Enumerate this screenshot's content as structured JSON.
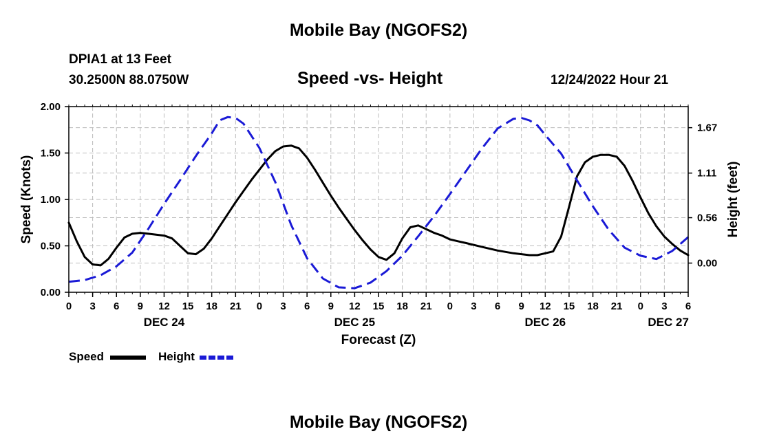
{
  "header": {
    "title": "Mobile Bay (NGOFS2)",
    "station": "DPIA1 at 13 Feet",
    "coordinates": "30.2500N  88.0750W",
    "subtitle": "Speed -vs- Height",
    "timestamp": "12/24/2022 Hour 21"
  },
  "footer": {
    "title": "Mobile Bay (NGOFS2)"
  },
  "legend": {
    "speed_label": "Speed",
    "height_label": "Height"
  },
  "chart_data": {
    "type": "line",
    "title": "Speed -vs- Height",
    "xlabel": "Forecast (Z)",
    "ylabel": "Speed (Knots)",
    "y2label": "Height (feet)",
    "xlim": [
      0,
      78
    ],
    "ylim": [
      0,
      2.0
    ],
    "y2lim": [
      -0.36,
      1.93
    ],
    "grid": true,
    "legend_position": "bottom-left",
    "x_ticks": [
      0,
      3,
      6,
      9,
      12,
      15,
      18,
      21,
      24,
      27,
      30,
      33,
      36,
      39,
      42,
      45,
      48,
      51,
      54,
      57,
      60,
      63,
      66,
      69,
      72,
      75,
      78
    ],
    "x_tick_labels": [
      "0",
      "3",
      "6",
      "9",
      "12",
      "15",
      "18",
      "21",
      "0",
      "3",
      "6",
      "9",
      "12",
      "15",
      "18",
      "21",
      "0",
      "3",
      "6",
      "9",
      "12",
      "15",
      "18",
      "21",
      "0",
      "3",
      "6"
    ],
    "date_labels": [
      {
        "hour": 12,
        "label": "DEC 24"
      },
      {
        "hour": 36,
        "label": "DEC 25"
      },
      {
        "hour": 60,
        "label": "DEC 26"
      },
      {
        "hour": 75.5,
        "label": "DEC 27"
      }
    ],
    "y_ticks": [
      0.0,
      0.5,
      1.0,
      1.5,
      2.0
    ],
    "y_tick_labels": [
      "0.00",
      "0.50",
      "1.00",
      "1.50",
      "2.00"
    ],
    "y2_ticks": [
      0.0,
      0.56,
      1.11,
      1.67
    ],
    "y2_tick_labels": [
      "0.00",
      "0.56",
      "1.11",
      "1.67"
    ],
    "series": [
      {
        "name": "Speed",
        "axis": "left",
        "color": "#000000",
        "dash": "solid",
        "x": [
          0,
          1,
          2,
          3,
          4,
          5,
          6,
          7,
          8,
          9,
          10,
          11,
          12,
          13,
          14,
          15,
          16,
          17,
          18,
          19,
          20,
          21,
          22,
          23,
          24,
          25,
          26,
          27,
          28,
          29,
          30,
          31,
          32,
          33,
          34,
          35,
          36,
          37,
          38,
          39,
          40,
          41,
          42,
          43,
          44,
          45,
          45.5,
          46,
          47,
          47.5,
          48,
          49,
          50,
          52,
          54,
          56,
          58,
          59,
          60,
          61,
          62,
          63,
          64,
          65,
          66,
          67,
          68,
          69,
          70,
          71,
          72,
          73,
          74,
          75,
          76,
          77,
          78
        ],
        "values": [
          0.75,
          0.55,
          0.38,
          0.3,
          0.29,
          0.36,
          0.48,
          0.59,
          0.63,
          0.64,
          0.63,
          0.62,
          0.61,
          0.58,
          0.5,
          0.42,
          0.41,
          0.47,
          0.58,
          0.71,
          0.84,
          0.97,
          1.09,
          1.21,
          1.32,
          1.43,
          1.52,
          1.57,
          1.58,
          1.55,
          1.45,
          1.32,
          1.18,
          1.04,
          0.91,
          0.79,
          0.67,
          0.56,
          0.46,
          0.38,
          0.35,
          0.42,
          0.58,
          0.7,
          0.72,
          0.68,
          0.66,
          0.64,
          0.61,
          0.59,
          0.57,
          0.55,
          0.53,
          0.49,
          0.45,
          0.42,
          0.4,
          0.4,
          0.42,
          0.44,
          0.6,
          0.92,
          1.25,
          1.4,
          1.46,
          1.48,
          1.48,
          1.46,
          1.36,
          1.2,
          1.02,
          0.85,
          0.71,
          0.6,
          0.52,
          0.45,
          0.4
        ]
      },
      {
        "name": "Height",
        "axis": "right",
        "color": "#1a1ad6",
        "dash": "dashed",
        "x": [
          0,
          2,
          4,
          6,
          8,
          10,
          12,
          14,
          16,
          18,
          19,
          20,
          21,
          22,
          24,
          26,
          28,
          30,
          32,
          34,
          36,
          38,
          40,
          42,
          44,
          46,
          48,
          50,
          52,
          54,
          56,
          57,
          58,
          59,
          60,
          62,
          64,
          66,
          68,
          70,
          72,
          74,
          76,
          78
        ],
        "values": [
          -0.23,
          -0.21,
          -0.15,
          -0.04,
          0.13,
          0.42,
          0.73,
          1.02,
          1.32,
          1.6,
          1.76,
          1.8,
          1.79,
          1.72,
          1.42,
          1.0,
          0.47,
          0.06,
          -0.19,
          -0.3,
          -0.31,
          -0.24,
          -0.1,
          0.09,
          0.33,
          0.58,
          0.85,
          1.13,
          1.41,
          1.66,
          1.78,
          1.79,
          1.76,
          1.7,
          1.58,
          1.35,
          1.02,
          0.7,
          0.41,
          0.19,
          0.09,
          0.05,
          0.15,
          0.32
        ]
      }
    ]
  }
}
